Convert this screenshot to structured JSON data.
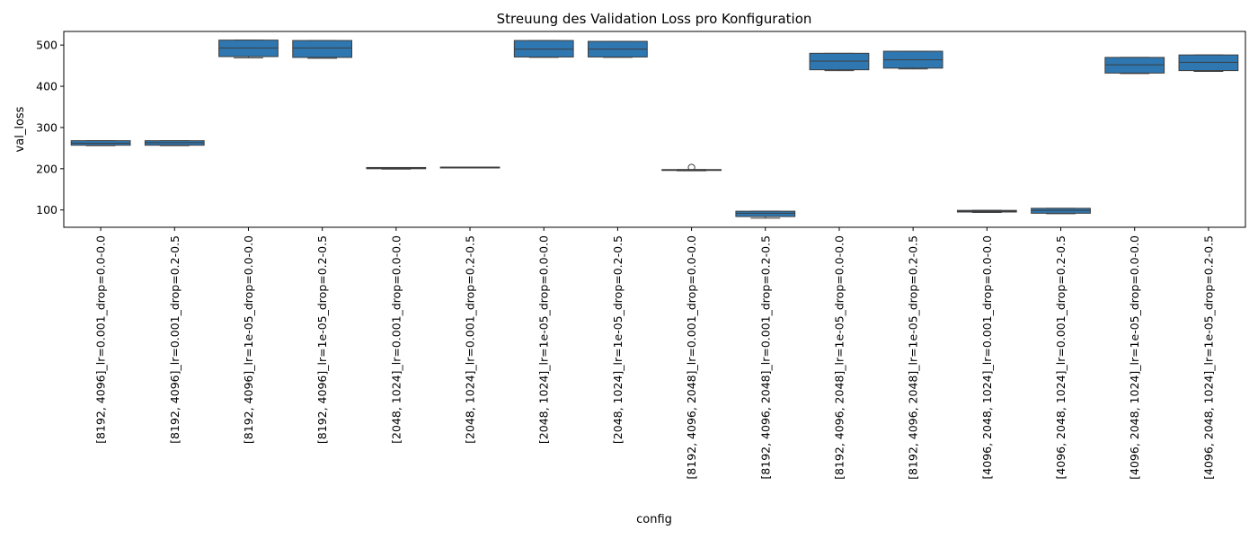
{
  "chart_data": {
    "type": "box",
    "title": "Streuung des Validation Loss pro Konfiguration",
    "xlabel": "config",
    "ylabel": "val_loss",
    "ylim": [
      58,
      533
    ],
    "yticks": [
      100,
      200,
      300,
      400,
      500
    ],
    "grid": false,
    "legend": "none",
    "color": "#2e77b1",
    "categories": [
      "[8192, 4096]_lr=0.001_drop=0.0-0.0",
      "[8192, 4096]_lr=0.001_drop=0.2-0.5",
      "[8192, 4096]_lr=1e-05_drop=0.0-0.0",
      "[8192, 4096]_lr=1e-05_drop=0.2-0.5",
      "[2048, 1024]_lr=0.001_drop=0.0-0.0",
      "[2048, 1024]_lr=0.001_drop=0.2-0.5",
      "[2048, 1024]_lr=1e-05_drop=0.0-0.0",
      "[2048, 1024]_lr=1e-05_drop=0.2-0.5",
      "[8192, 4096, 2048]_lr=0.001_drop=0.0-0.0",
      "[8192, 4096, 2048]_lr=0.001_drop=0.2-0.5",
      "[8192, 4096, 2048]_lr=1e-05_drop=0.0-0.0",
      "[8192, 4096, 2048]_lr=1e-05_drop=0.2-0.5",
      "[4096, 2048, 1024]_lr=0.001_drop=0.0-0.0",
      "[4096, 2048, 1024]_lr=0.001_drop=0.2-0.5",
      "[4096, 2048, 1024]_lr=1e-05_drop=0.0-0.0",
      "[4096, 2048, 1024]_lr=1e-05_drop=0.2-0.5"
    ],
    "boxes": [
      {
        "min": 256,
        "q1": 257,
        "median": 262,
        "q3": 268,
        "max": 268,
        "outliers": []
      },
      {
        "min": 256,
        "q1": 257,
        "median": 263,
        "q3": 268,
        "max": 268,
        "outliers": []
      },
      {
        "min": 469,
        "q1": 472,
        "median": 493,
        "q3": 512,
        "max": 512,
        "outliers": []
      },
      {
        "min": 468,
        "q1": 470,
        "median": 493,
        "q3": 511,
        "max": 511,
        "outliers": []
      },
      {
        "min": 199,
        "q1": 200,
        "median": 201,
        "q3": 203,
        "max": 203,
        "outliers": []
      },
      {
        "min": 202,
        "q1": 202,
        "median": 203,
        "q3": 204,
        "max": 204,
        "outliers": []
      },
      {
        "min": 470,
        "q1": 471,
        "median": 490,
        "q3": 511,
        "max": 511,
        "outliers": []
      },
      {
        "min": 470,
        "q1": 471,
        "median": 490,
        "q3": 509,
        "max": 509,
        "outliers": []
      },
      {
        "min": 195,
        "q1": 196,
        "median": 197,
        "q3": 198,
        "max": 198,
        "outliers": [
          203
        ]
      },
      {
        "min": 80,
        "q1": 84,
        "median": 92,
        "q3": 97,
        "max": 97,
        "outliers": []
      },
      {
        "min": 438,
        "q1": 440,
        "median": 461,
        "q3": 480,
        "max": 480,
        "outliers": []
      },
      {
        "min": 442,
        "q1": 444,
        "median": 464,
        "q3": 485,
        "max": 485,
        "outliers": []
      },
      {
        "min": 94,
        "q1": 95,
        "median": 97,
        "q3": 99,
        "max": 99,
        "outliers": []
      },
      {
        "min": 91,
        "q1": 92,
        "median": 99,
        "q3": 104,
        "max": 104,
        "outliers": []
      },
      {
        "min": 431,
        "q1": 432,
        "median": 452,
        "q3": 470,
        "max": 470,
        "outliers": []
      },
      {
        "min": 436,
        "q1": 438,
        "median": 458,
        "q3": 476,
        "max": 476,
        "outliers": []
      }
    ]
  }
}
